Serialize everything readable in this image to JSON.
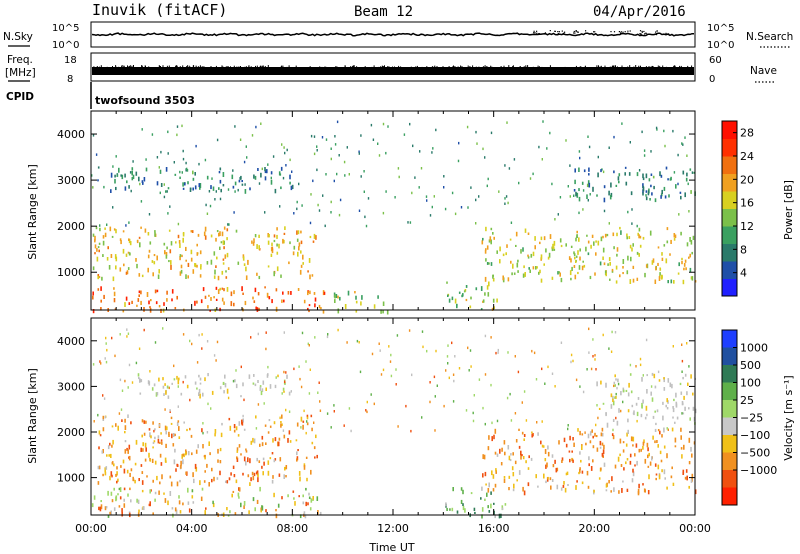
{
  "header": {
    "station": "Inuvik (fitACF)",
    "beam": "Beam 12",
    "date": "04/Apr/2016"
  },
  "labels": {
    "nsky": "N.Sky",
    "nsearch": "N.Search",
    "freq": "Freq.",
    "mhz": "[MHz]",
    "nave": "Nave",
    "cpid": "CPID",
    "program": "twofsound 3503",
    "ylabel": "Slant Range [km]",
    "xlabel": "Time UT",
    "power_label": "Power [dB]",
    "velocity_label": "Velocity [m s⁻¹]"
  },
  "colors": {
    "frame": "#000000",
    "background": "#ffffff"
  },
  "chart_data": [
    {
      "type": "line",
      "name": "noise-panel",
      "left_ticks": [
        "10^5",
        "10^0"
      ],
      "right_ticks": [
        "10^5",
        "10^0"
      ],
      "series": [
        {
          "name": "N.Sky",
          "approx_level": "10^4"
        }
      ]
    },
    {
      "type": "line",
      "name": "frequency-panel",
      "left_ticks": [
        "18",
        "8"
      ],
      "right_ticks": [
        "60",
        "0"
      ],
      "ylim": [
        8,
        18
      ],
      "series": [
        {
          "name": "Freq.",
          "approx_value": 11
        }
      ]
    },
    {
      "type": "heatmap",
      "name": "power",
      "xlabel": "Time UT",
      "ylabel": "Slant Range [km]",
      "xlim_hours": [
        0,
        24
      ],
      "ylim": [
        180,
        4500
      ],
      "x_ticks": [
        "00:00",
        "04:00",
        "08:00",
        "12:00",
        "16:00",
        "20:00",
        "00:00"
      ],
      "y_ticks": [
        1000,
        2000,
        3000,
        4000
      ],
      "colorbar": {
        "label": "Power [dB]",
        "ticks": [
          4,
          8,
          12,
          16,
          20,
          24,
          28
        ],
        "range": [
          0,
          30
        ]
      },
      "echo_regions": [
        {
          "t0": 0.0,
          "t1": 9.3,
          "r0": 180,
          "r1": 700,
          "level": 26
        },
        {
          "t0": 0.0,
          "t1": 9.0,
          "r0": 900,
          "r1": 2000,
          "level": 20
        },
        {
          "t0": 0.1,
          "t1": 8.0,
          "r0": 2800,
          "r1": 3300,
          "level": 8
        },
        {
          "t0": 9.6,
          "t1": 12.0,
          "r0": 180,
          "r1": 600,
          "level": 16
        },
        {
          "t0": 14.0,
          "t1": 16.2,
          "r0": 180,
          "r1": 800,
          "level": 16
        },
        {
          "t0": 15.5,
          "t1": 24.0,
          "r0": 800,
          "r1": 2000,
          "level": 18
        },
        {
          "t0": 19.0,
          "t1": 24.0,
          "r0": 2600,
          "r1": 3300,
          "level": 8
        }
      ]
    },
    {
      "type": "heatmap",
      "name": "velocity",
      "xlabel": "Time UT",
      "ylabel": "Slant Range [km]",
      "xlim_hours": [
        0,
        24
      ],
      "ylim": [
        180,
        4500
      ],
      "x_ticks": [
        "00:00",
        "04:00",
        "08:00",
        "12:00",
        "16:00",
        "20:00",
        "00:00"
      ],
      "y_ticks": [
        1000,
        2000,
        3000,
        4000
      ],
      "colorbar": {
        "label": "Velocity [m s⁻¹]",
        "ticks": [
          "1000",
          "500",
          "100",
          "25",
          "−25",
          "−100",
          "−500",
          "−1000"
        ]
      },
      "echo_regions": [
        {
          "t0": 0.0,
          "t1": 9.3,
          "r0": 180,
          "r1": 800,
          "kind": "mixed"
        },
        {
          "t0": 0.2,
          "t1": 9.0,
          "r0": 900,
          "r1": 2400,
          "kind": "receding"
        },
        {
          "t0": 1.5,
          "t1": 8.0,
          "r0": 2800,
          "r1": 3300,
          "kind": "low"
        },
        {
          "t0": 15.5,
          "t1": 24.0,
          "r0": 700,
          "r1": 2100,
          "kind": "receding"
        },
        {
          "t0": 14.0,
          "t1": 16.5,
          "r0": 180,
          "r1": 800,
          "kind": "approaching"
        },
        {
          "t0": 20.0,
          "t1": 24.0,
          "r0": 2200,
          "r1": 3300,
          "kind": "low"
        }
      ]
    }
  ]
}
